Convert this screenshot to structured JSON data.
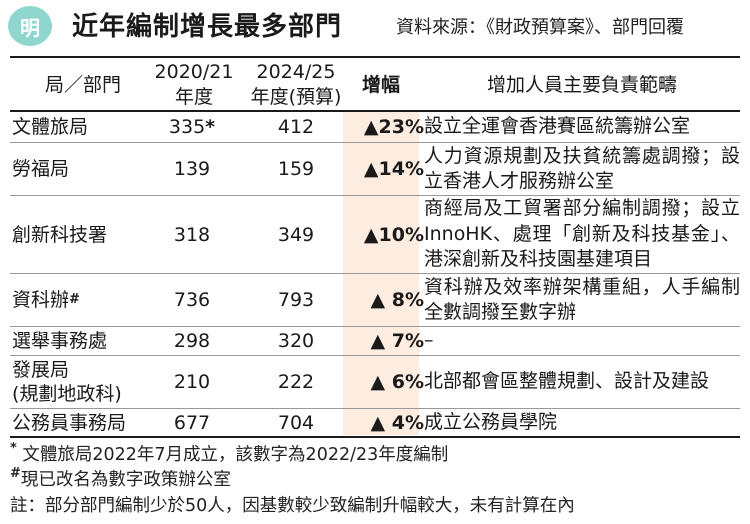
{
  "header": {
    "logo_text": "明",
    "title": "近年編制增長最多部門",
    "source": "資料來源：《財政預算案》、部門回覆"
  },
  "table": {
    "columns": [
      {
        "line1": "局／部門",
        "line2": ""
      },
      {
        "line1": "2020/21",
        "line2": "年度"
      },
      {
        "line1": "2024/25",
        "line2": "年度(預算)"
      },
      {
        "line1": "增幅",
        "line2": ""
      },
      {
        "line1": "增加人員主要負責範疇",
        "line2": ""
      }
    ],
    "rows": [
      {
        "dept": "文體旅局",
        "v2020": "335",
        "v2020_mark": "*",
        "v2024": "412",
        "increase": "▲23%",
        "duty": "設立全運會香港賽區統籌辦公室"
      },
      {
        "dept": "勞福局",
        "v2020": "139",
        "v2024": "159",
        "increase": "▲14%",
        "duty": "人力資源規劃及扶貧統籌處調撥；設立香港人才服務辦公室"
      },
      {
        "dept": "創新科技署",
        "v2020": "318",
        "v2024": "349",
        "increase": "▲10%",
        "duty": "商經局及工貿署部分編制調撥；設立InnoHK、處理「創新及科技基金」、港深創新及科技園基建項目"
      },
      {
        "dept": "資科辦",
        "dept_mark": "#",
        "v2020": "736",
        "v2024": "793",
        "increase": "▲ 8%",
        "duty": "資科辦及效率辦架構重組，人手編制全數調撥至數字辦"
      },
      {
        "dept": "選舉事務處",
        "v2020": "298",
        "v2024": "320",
        "increase": "▲ 7%",
        "duty": "–"
      },
      {
        "dept": "發展局",
        "dept_line2": "(規劃地政科)",
        "v2020": "210",
        "v2024": "222",
        "increase": "▲ 6%",
        "duty": "北部都會區整體規劃、設計及建設"
      },
      {
        "dept": "公務員事務局",
        "v2020": "677",
        "v2024": "704",
        "increase": "▲ 4%",
        "duty": "成立公務員學院"
      }
    ]
  },
  "footnotes": {
    "star_mark": "*",
    "star": "文體旅局2022年7月成立，該數字為2022/23年度編制",
    "hash_mark": "#",
    "hash": "現已改名為數字政策辦公室",
    "note": "註：部分部門編制少於50人，因基數較少致編制升幅較大，未有計算在內"
  },
  "colors": {
    "accent_logo": "#8fd6cf",
    "increase_column": "#fdece0"
  }
}
